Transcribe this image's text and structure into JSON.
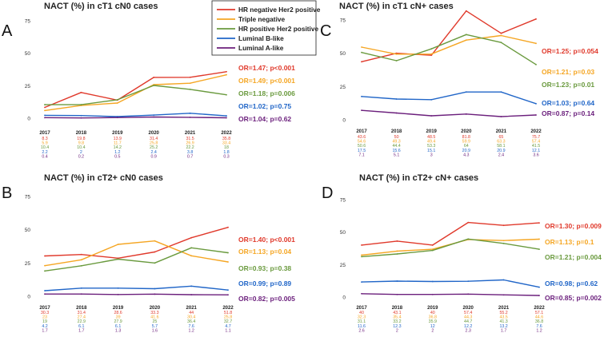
{
  "colors": {
    "hr_neg_her2_pos": "#e0392b",
    "triple_negative": "#f5a623",
    "hr_pos_her2_neg": "#6a9a3e",
    "luminal_b": "#2166c8",
    "luminal_a": "#6b1f7c"
  },
  "legend": [
    {
      "name": "HR negative Her2 positive",
      "color": "#e0392b"
    },
    {
      "name": "Triple negative",
      "color": "#f5a623"
    },
    {
      "name": "HR positive Her2 positive",
      "color": "#6a9a3e"
    },
    {
      "name": "Luminal B-like",
      "color": "#2166c8"
    },
    {
      "name": "Luminal A-like",
      "color": "#6b1f7c"
    }
  ],
  "chart_data": [
    {
      "type": "line",
      "panel": "A",
      "title": "NACT (%) in cT1 cN0 cases",
      "categories": [
        "2017",
        "2018",
        "2019",
        "2020",
        "2021",
        "2022"
      ],
      "ylim": [
        0,
        75
      ],
      "yticks": [
        "0",
        "25",
        "50",
        "75"
      ],
      "series": [
        {
          "name": "HR negative Her2 positive",
          "color": "#e0392b",
          "values": [
            8.3,
            19.8,
            13.9,
            31.4,
            31.5,
            35.8
          ],
          "labels": [
            "8.3",
            "19.8",
            "13.9",
            "31.4",
            "31.5",
            "35.8"
          ],
          "or": "OR=1.47; p<0.001"
        },
        {
          "name": "Triple negative",
          "color": "#f5a623",
          "values": [
            5.9,
            9.8,
            11.7,
            25.8,
            26.9,
            33.4
          ],
          "labels": [
            "5.9",
            "9.8",
            "11.7",
            "25.8",
            "26.9",
            "33.4"
          ],
          "or": "OR=1.49; p<0.001"
        },
        {
          "name": "HR positive Her2 positive",
          "color": "#6a9a3e",
          "values": [
            10.4,
            10.4,
            14.2,
            25.2,
            22.2,
            18
          ],
          "labels": [
            "10.4",
            "10.4",
            "14.2",
            "25.2",
            "22.2",
            "18"
          ],
          "or": "OR=1.18; p=0.006"
        },
        {
          "name": "Luminal B-like",
          "color": "#2166c8",
          "values": [
            2.2,
            2,
            1.2,
            2.4,
            3.8,
            1.8
          ],
          "labels": [
            "2.2",
            "2",
            "1.2",
            "2.4",
            "3.8",
            "1.8"
          ],
          "or": "OR=1.02; p=0.75"
        },
        {
          "name": "Luminal A-like",
          "color": "#6b1f7c",
          "values": [
            0.4,
            0.2,
            0.5,
            0.9,
            0.7,
            0.3
          ],
          "labels": [
            "0.4",
            "0.2",
            "0.5",
            "0.9",
            "0.7",
            "0.3"
          ],
          "or": "OR=1.04; p=0.62"
        }
      ]
    },
    {
      "type": "line",
      "panel": "B",
      "title": "NACT (%) in cT2+ cN0 cases",
      "categories": [
        "2017",
        "2018",
        "2019",
        "2020",
        "2021",
        "2022"
      ],
      "ylim": [
        0,
        75
      ],
      "yticks": [
        "0",
        "25",
        "50",
        "75"
      ],
      "series": [
        {
          "name": "HR negative Her2 positive",
          "color": "#e0392b",
          "values": [
            30.3,
            31.4,
            28.6,
            33.3,
            44,
            51.8
          ],
          "labels": [
            "30.3",
            "31.4",
            "28.6",
            "33.3",
            "44",
            "51.8"
          ],
          "or": "OR=1.40; p<0.001"
        },
        {
          "name": "Triple negative",
          "color": "#f5a623",
          "values": [
            23,
            27.4,
            39,
            41.6,
            30.4,
            25.8
          ],
          "labels": [
            "23",
            "27.4",
            "39",
            "41.6",
            "30.4",
            "25.8"
          ],
          "or": "OR=1.13; p=0.04"
        },
        {
          "name": "HR positive Her2 positive",
          "color": "#6a9a3e",
          "values": [
            19,
            22.9,
            27.9,
            25,
            36.4,
            32.7
          ],
          "labels": [
            "19",
            "22.9",
            "27.9",
            "25",
            "36.4",
            "32.7"
          ],
          "or": "OR=0.93; p=0.38"
        },
        {
          "name": "Luminal B-like",
          "color": "#2166c8",
          "values": [
            4.2,
            6.1,
            6.1,
            5.7,
            7.6,
            4.7
          ],
          "labels": [
            "4.2",
            "6.1",
            "6.1",
            "5.7",
            "7.6",
            "4.7"
          ],
          "or": "OR=0.99; p=0.89"
        },
        {
          "name": "Luminal A-like",
          "color": "#6b1f7c",
          "values": [
            1.7,
            1.7,
            1.3,
            1.6,
            1.2,
            1.1
          ],
          "labels": [
            "1.7",
            "1.7",
            "1.3",
            "1.6",
            "1.2",
            "1.1"
          ],
          "or": "OR=0.82; p=0.005"
        }
      ]
    },
    {
      "type": "line",
      "panel": "C",
      "title": "NACT (%) in cT1 cN+ cases",
      "categories": [
        "2017",
        "2018",
        "2019",
        "2020",
        "2021",
        "2022"
      ],
      "ylim": [
        0,
        75
      ],
      "yticks": [
        "0",
        "25",
        "50",
        "75"
      ],
      "series": [
        {
          "name": "HR negative Her2 positive",
          "color": "#e0392b",
          "values": [
            43.6,
            50,
            48.5,
            81.8,
            65,
            75.7
          ],
          "labels": [
            "43.6",
            "50",
            "48.5",
            "81.8",
            "65",
            "75.7"
          ],
          "or": "OR=1.25; p=0.054"
        },
        {
          "name": "Triple negative",
          "color": "#f5a623",
          "values": [
            54.6,
            49.3,
            49.4,
            59.9,
            63.3,
            57.4
          ],
          "labels": [
            "54.6",
            "49.3",
            "49.4",
            "59.9",
            "63.3",
            "57.4"
          ],
          "or": "OR=1.21; p=0.03"
        },
        {
          "name": "HR positive Her2 positive",
          "color": "#6a9a3e",
          "values": [
            50.6,
            44.4,
            53.3,
            64,
            58.1,
            41.5
          ],
          "labels": [
            "50.6",
            "44.4",
            "53.3",
            "64",
            "58.1",
            "41.5"
          ],
          "or": "OR=1.23; p=0.01"
        },
        {
          "name": "Luminal B-like",
          "color": "#2166c8",
          "values": [
            17.5,
            15.6,
            15.1,
            20.9,
            20.9,
            12.1
          ],
          "labels": [
            "17.5",
            "15.6",
            "15.1",
            "20.9",
            "20.9",
            "12.1"
          ],
          "or": "OR=1.03; p=0.64"
        },
        {
          "name": "Luminal A-like",
          "color": "#6b1f7c",
          "values": [
            7.1,
            5.1,
            3,
            4.3,
            2.4,
            3.6
          ],
          "labels": [
            "7.1",
            "5.1",
            "3",
            "4.3",
            "2.4",
            "3.6"
          ],
          "or": "OR=0.87; p=0.14"
        }
      ]
    },
    {
      "type": "line",
      "panel": "D",
      "title": "NACT (%) in cT2+ cN+ cases",
      "categories": [
        "2017",
        "2018",
        "2019",
        "2020",
        "2021",
        "2022"
      ],
      "ylim": [
        0,
        75
      ],
      "yticks": [
        "0",
        "25",
        "50",
        "75"
      ],
      "series": [
        {
          "name": "HR negative Her2 positive",
          "color": "#e0392b",
          "values": [
            40,
            43.1,
            40,
            57.4,
            55.2,
            57.1
          ],
          "labels": [
            "40",
            "43.1",
            "40",
            "57.4",
            "55.2",
            "57.1"
          ],
          "or": "OR=1.30; p=0.009"
        },
        {
          "name": "Triple negative",
          "color": "#f5a623",
          "values": [
            32.3,
            35.4,
            36.8,
            44.3,
            43.5,
            44.6
          ],
          "labels": [
            "32.3",
            "35.4",
            "36.8",
            "44.3",
            "43.5",
            "44.6"
          ],
          "or": "OR=1.13; p=0.1"
        },
        {
          "name": "HR positive Her2 positive",
          "color": "#6a9a3e",
          "values": [
            31.1,
            33.2,
            35.9,
            44.7,
            41.3,
            36.8
          ],
          "labels": [
            "31.1",
            "33.2",
            "35.9",
            "44.7",
            "41.3",
            "36.8"
          ],
          "or": "OR=1.21; p=0.004"
        },
        {
          "name": "Luminal B-like",
          "color": "#2166c8",
          "values": [
            11.6,
            12.3,
            12,
            12.2,
            13.2,
            7.6
          ],
          "labels": [
            "11.6",
            "12.3",
            "12",
            "12.2",
            "13.2",
            "7.6"
          ],
          "or": "OR=0.98; p=0.62"
        },
        {
          "name": "Luminal A-like",
          "color": "#6b1f7c",
          "values": [
            2.6,
            2,
            2,
            2.3,
            1.7,
            1.2
          ],
          "labels": [
            "2.6",
            "2",
            "2",
            "2.3",
            "1.7",
            "1.2"
          ],
          "or": "OR=0.85; p=0.002"
        }
      ]
    }
  ]
}
